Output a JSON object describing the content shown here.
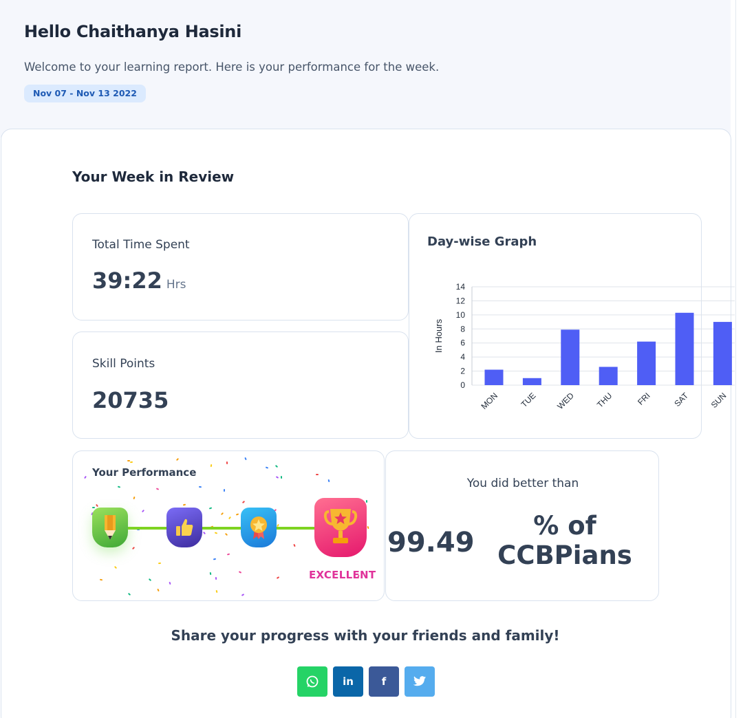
{
  "header": {
    "greeting": "Hello Chaithanya Hasini",
    "welcome": "Welcome to your learning report. Here is your performance for the week.",
    "date_range": "Nov 07 - Nov 13 2022"
  },
  "review": {
    "title": "Your Week in Review",
    "total_time": {
      "label": "Total Time Spent",
      "value": "39:22",
      "unit": "Hrs"
    },
    "skill_points": {
      "label": "Skill Points",
      "value": "20735"
    },
    "graph_title": "Day-wise Graph"
  },
  "chart_data": {
    "type": "bar",
    "categories": [
      "MON",
      "TUE",
      "WED",
      "THU",
      "FRI",
      "SAT",
      "SUN"
    ],
    "values": [
      2.2,
      1.0,
      7.9,
      2.6,
      6.2,
      10.3,
      9.0
    ],
    "ylabel": "In Hours",
    "yticks": [
      0,
      2,
      4,
      6,
      8,
      10,
      12,
      14
    ],
    "ylim": [
      0,
      14
    ],
    "grid": true,
    "bar_color": "#4f5ef5"
  },
  "performance": {
    "title": "Your Performance",
    "level_label": "EXCELLENT",
    "badges": [
      "pencil-badge-icon",
      "thumbs-up-badge-icon",
      "medal-badge-icon",
      "trophy-badge-icon"
    ]
  },
  "comparison": {
    "label": "You did better than",
    "percent": "99.49",
    "suffix": "% of CCBPians"
  },
  "share": {
    "text": "Share your progress with your friends and family!",
    "buttons": [
      {
        "name": "whatsapp",
        "glyph": "◯"
      },
      {
        "name": "linkedin",
        "glyph": "in"
      },
      {
        "name": "facebook",
        "glyph": "f"
      },
      {
        "name": "twitter",
        "glyph": "🐦"
      }
    ]
  },
  "colors": {
    "accent": "#4f5ef5",
    "pill_bg": "#dbeafe",
    "pill_text": "#1e5ab4",
    "excellent": "#e0329a",
    "whatsapp": "#25d366",
    "linkedin": "#0a66a8",
    "facebook": "#3b5998",
    "twitter": "#55acee"
  }
}
